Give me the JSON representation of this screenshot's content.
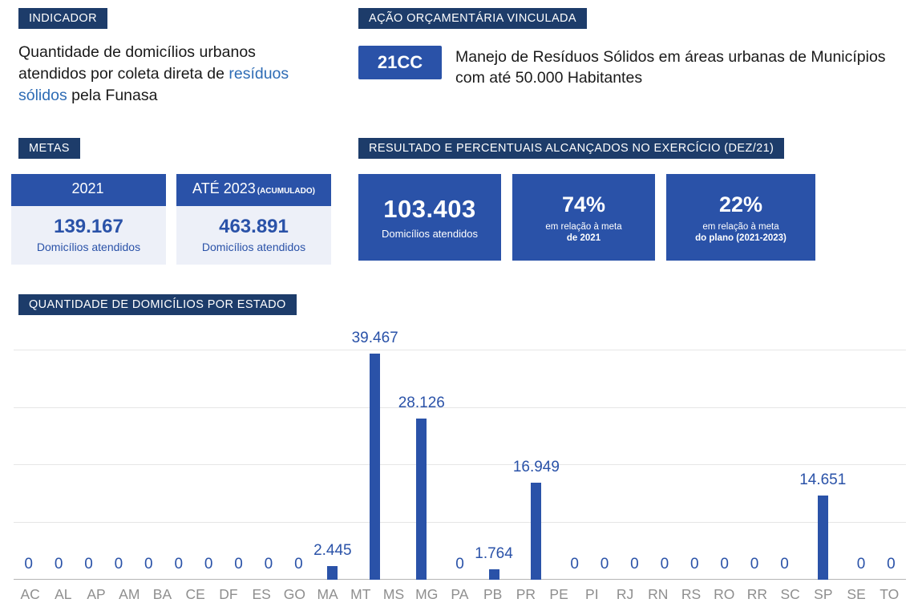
{
  "colors": {
    "navy_badge": "#1d3c6a",
    "royal_blue": "#2a52a8",
    "light_card_bg": "#edf0f8",
    "highlight_text": "#2e6cb5",
    "tick_gray": "#8e8e8e"
  },
  "indicator": {
    "badge": "INDICADOR",
    "text_before": "Quantidade de domicílios urbanos atendidos por coleta direta de ",
    "highlight": "resíduos sólidos",
    "text_after": " pela Funasa"
  },
  "acao": {
    "badge": "AÇÃO ORÇAMENTÁRIA VINCULADA",
    "code": "21CC",
    "description": "Manejo de Resíduos Sólidos em áreas urbanas de Municípios com até 50.000 Habitantes"
  },
  "metas": {
    "badge": "METAS",
    "cards": [
      {
        "header": "2021",
        "header_suffix": "",
        "value": "139.167",
        "label": "Domicílios atendidos"
      },
      {
        "header": "ATÉ 2023",
        "header_suffix": "(ACUMULADO)",
        "value": "463.891",
        "label": "Domicílios atendidos"
      }
    ]
  },
  "resultado": {
    "badge": "RESULTADO E PERCENTUAIS ALCANÇADOS NO EXERCÍCIO (DEZ/21)",
    "boxes": [
      {
        "value": "103.403",
        "line1": "Domicílios atendidos",
        "line2": ""
      },
      {
        "value": "74%",
        "line1": "em relação à meta",
        "line2": "de 2021"
      },
      {
        "value": "22%",
        "line1": "em relação à meta",
        "line2": "do plano (2021-2023)"
      }
    ]
  },
  "chart": {
    "badge": "QUANTIDADE DE DOMICÍLIOS POR ESTADO"
  },
  "chart_data": {
    "type": "bar",
    "title": "Quantidade de domicílios por estado",
    "xlabel": "",
    "ylabel": "",
    "categories": [
      "AC",
      "AL",
      "AP",
      "AM",
      "BA",
      "CE",
      "DF",
      "ES",
      "GO",
      "MA",
      "MT",
      "MS",
      "MG",
      "PA",
      "PB",
      "PR",
      "PE",
      "PI",
      "RJ",
      "RN",
      "RS",
      "RO",
      "RR",
      "SC",
      "SP",
      "SE",
      "TO"
    ],
    "values": [
      0,
      0,
      0,
      0,
      0,
      0,
      0,
      0,
      0,
      0,
      2445,
      39467,
      28126,
      0,
      1764,
      16949,
      0,
      0,
      0,
      0,
      0,
      0,
      0,
      0,
      14651,
      0,
      0
    ],
    "value_labels": [
      "0",
      "0",
      "0",
      "0",
      "0",
      "0",
      "0",
      "0",
      "0",
      "0",
      "2.445",
      "39.467",
      "28.126",
      "0",
      "1.764",
      "16.949",
      "0",
      "0",
      "0",
      "0",
      "0",
      "0",
      "0",
      "0",
      "14.651",
      "0",
      "0"
    ],
    "ylim": [
      0,
      40000
    ],
    "gridline_step": 10000,
    "grid": true,
    "legend": false,
    "bar_color": "#2a52a8"
  }
}
